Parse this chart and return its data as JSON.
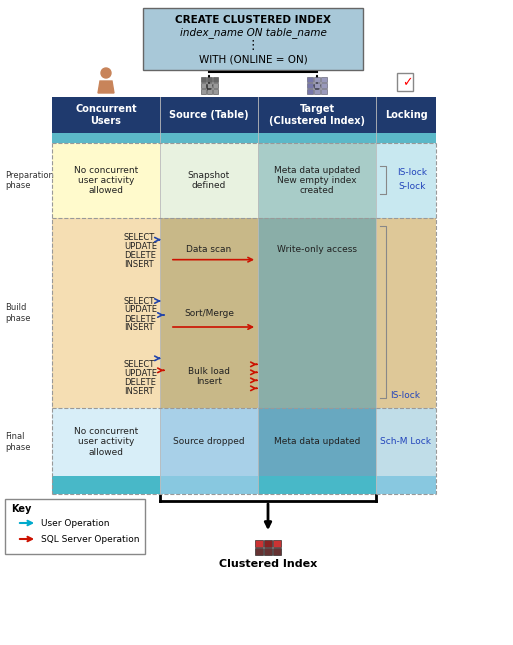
{
  "fig_w": 5.13,
  "fig_h": 6.45,
  "dpi": 100,
  "title_text1": "CREATE CLUSTERED INDEX",
  "title_text2": "index_name ON table_name",
  "title_text3": "⋮",
  "title_text4": "WITH (ONLINE = ON)",
  "col_headers": [
    "Concurrent\nUsers",
    "Source (Table)",
    "Target\n(Clustered Index)",
    "Locking"
  ],
  "phase_labels": [
    "Preparation\nphase",
    "Build\nphase",
    "Final\nphase"
  ],
  "header_dark": "#1F3A6E",
  "header_teal": "#5BB8C8",
  "prep_col0_bg": "#FFFACC",
  "prep_col1_bg": "#E8F2E0",
  "prep_col2_bg": "#A8CCC8",
  "prep_col3_bg": "#C8E8F0",
  "build_col0_bg": "#F5DEB3",
  "build_col1_bg": "#C8B888",
  "build_col2_bg": "#8AAEA8",
  "build_col3_bg": "#DEC898",
  "final_col0_bg": "#D8EEF8",
  "final_col1_bg": "#A8D0E8",
  "final_col2_bg": "#68A8C0",
  "final_col3_bg": "#C0DDE8",
  "footer_col0": "#48B8C8",
  "footer_col1": "#88C8E0",
  "footer_col2": "#48B8C8",
  "footer_col3": "#88C8E0",
  "title_box_bg": "#A8C8D8",
  "blue_arrow": "#2244AA",
  "red_arrow": "#CC1100",
  "teal_arrow": "#00AACC",
  "locking_color": "#2244BB",
  "black": "#000000",
  "phase_label_color": "#333333",
  "content_text_color": "#222222",
  "key_border": "#888888"
}
